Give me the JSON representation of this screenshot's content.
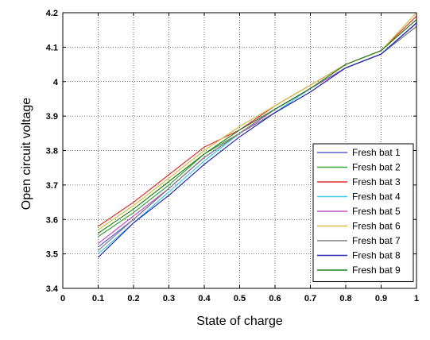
{
  "chart_data": {
    "type": "line",
    "title": "",
    "xlabel": "State of charge",
    "ylabel": "Open circuit voltage",
    "xlim": [
      0,
      1
    ],
    "ylim": [
      3.4,
      4.2
    ],
    "x_ticks": [
      "0",
      "0.1",
      "0.2",
      "0.3",
      "0.4",
      "0.5",
      "0.6",
      "0.7",
      "0.8",
      "0.9",
      "1"
    ],
    "y_ticks": [
      "3.4",
      "3.5",
      "3.6",
      "3.7",
      "3.8",
      "3.9",
      "4",
      "4.1",
      "4.2"
    ],
    "grid": true,
    "legend_position": "bottom-right",
    "x": [
      0.1,
      0.2,
      0.3,
      0.4,
      0.5,
      0.6,
      0.7,
      0.8,
      0.9,
      1.0
    ],
    "series": [
      {
        "name": "Fresh bat 1",
        "color": "#5a5ad6",
        "values": [
          3.52,
          3.6,
          3.69,
          3.78,
          3.85,
          3.92,
          3.98,
          4.04,
          4.08,
          4.17
        ]
      },
      {
        "name": "Fresh bat 2",
        "color": "#3fa23f",
        "values": [
          3.55,
          3.62,
          3.7,
          3.79,
          3.85,
          3.92,
          3.98,
          4.04,
          4.08,
          4.17
        ]
      },
      {
        "name": "Fresh bat 3",
        "color": "#e03030",
        "values": [
          3.58,
          3.65,
          3.73,
          3.81,
          3.86,
          3.93,
          3.99,
          4.05,
          4.09,
          4.19
        ]
      },
      {
        "name": "Fresh bat 4",
        "color": "#40c8e8",
        "values": [
          3.5,
          3.59,
          3.68,
          3.77,
          3.85,
          3.91,
          3.98,
          4.04,
          4.08,
          4.16
        ]
      },
      {
        "name": "Fresh bat 5",
        "color": "#c050c0",
        "values": [
          3.53,
          3.61,
          3.69,
          3.78,
          3.85,
          3.92,
          3.98,
          4.04,
          4.08,
          4.17
        ]
      },
      {
        "name": "Fresh bat 6",
        "color": "#d0c040",
        "values": [
          3.57,
          3.64,
          3.72,
          3.8,
          3.87,
          3.93,
          3.99,
          4.05,
          4.09,
          4.2
        ]
      },
      {
        "name": "Fresh bat 7",
        "color": "#808080",
        "values": [
          3.51,
          3.6,
          3.69,
          3.78,
          3.85,
          3.91,
          3.97,
          4.04,
          4.08,
          4.16
        ]
      },
      {
        "name": "Fresh bat 8",
        "color": "#2a2ab0",
        "values": [
          3.49,
          3.59,
          3.67,
          3.76,
          3.84,
          3.91,
          3.97,
          4.04,
          4.08,
          4.17
        ]
      },
      {
        "name": "Fresh bat 9",
        "color": "#208020",
        "values": [
          3.56,
          3.63,
          3.71,
          3.79,
          3.86,
          3.92,
          3.98,
          4.05,
          4.09,
          4.18
        ]
      }
    ]
  }
}
